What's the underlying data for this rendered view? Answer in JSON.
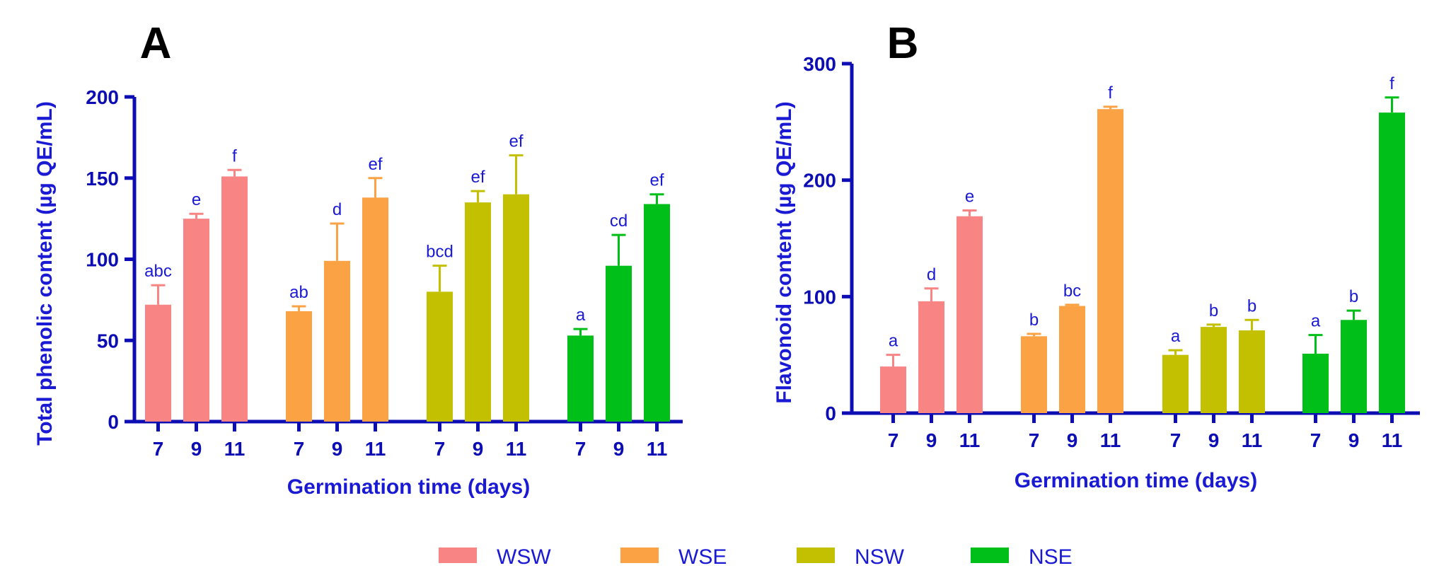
{
  "legend": [
    {
      "name": "WSW",
      "color": "#f88484"
    },
    {
      "name": "WSE",
      "color": "#fba344"
    },
    {
      "name": "NSW",
      "color": "#c2c000"
    },
    {
      "name": "NSE",
      "color": "#00bf18"
    }
  ],
  "chart_data": [
    {
      "type": "bar",
      "panel": "A",
      "ylabel": "Total phenolic content (µg QE/mL)",
      "xlabel": "Germination time (days)",
      "ylim": [
        0,
        200
      ],
      "yticks": [
        "0",
        "50",
        "100",
        "150",
        "200"
      ],
      "categories": [
        "7",
        "9",
        "11"
      ],
      "series": [
        {
          "name": "WSW",
          "values": [
            72,
            125,
            151
          ],
          "errors": [
            12,
            3,
            4
          ],
          "letters": [
            "abc",
            "e",
            "f"
          ]
        },
        {
          "name": "WSE",
          "values": [
            68,
            99,
            138
          ],
          "errors": [
            3,
            23,
            12
          ],
          "letters": [
            "ab",
            "d",
            "ef"
          ]
        },
        {
          "name": "NSW",
          "values": [
            80,
            135,
            140
          ],
          "errors": [
            16,
            7,
            24
          ],
          "letters": [
            "bcd",
            "ef",
            "ef"
          ]
        },
        {
          "name": "NSE",
          "values": [
            53,
            96,
            134
          ],
          "errors": [
            4,
            19,
            6
          ],
          "letters": [
            "a",
            "cd",
            "ef"
          ]
        }
      ]
    },
    {
      "type": "bar",
      "panel": "B",
      "ylabel": "Flavonoid content (µg QE/mL)",
      "xlabel": "Germination time (days)",
      "ylim": [
        0,
        300
      ],
      "yticks": [
        "0",
        "100",
        "200",
        "300"
      ],
      "categories": [
        "7",
        "9",
        "11"
      ],
      "series": [
        {
          "name": "WSW",
          "values": [
            40,
            96,
            169
          ],
          "errors": [
            10,
            11,
            5
          ],
          "letters": [
            "a",
            "d",
            "e"
          ]
        },
        {
          "name": "WSE",
          "values": [
            66,
            92,
            261
          ],
          "errors": [
            2,
            1,
            2
          ],
          "letters": [
            "b",
            "bc",
            "f"
          ]
        },
        {
          "name": "NSW",
          "values": [
            50,
            74,
            71
          ],
          "errors": [
            4,
            2,
            9
          ],
          "letters": [
            "a",
            "b",
            "b"
          ]
        },
        {
          "name": "NSE",
          "values": [
            51,
            80,
            258
          ],
          "errors": [
            16,
            8,
            13
          ],
          "letters": [
            "a",
            "b",
            "f"
          ]
        }
      ]
    }
  ]
}
